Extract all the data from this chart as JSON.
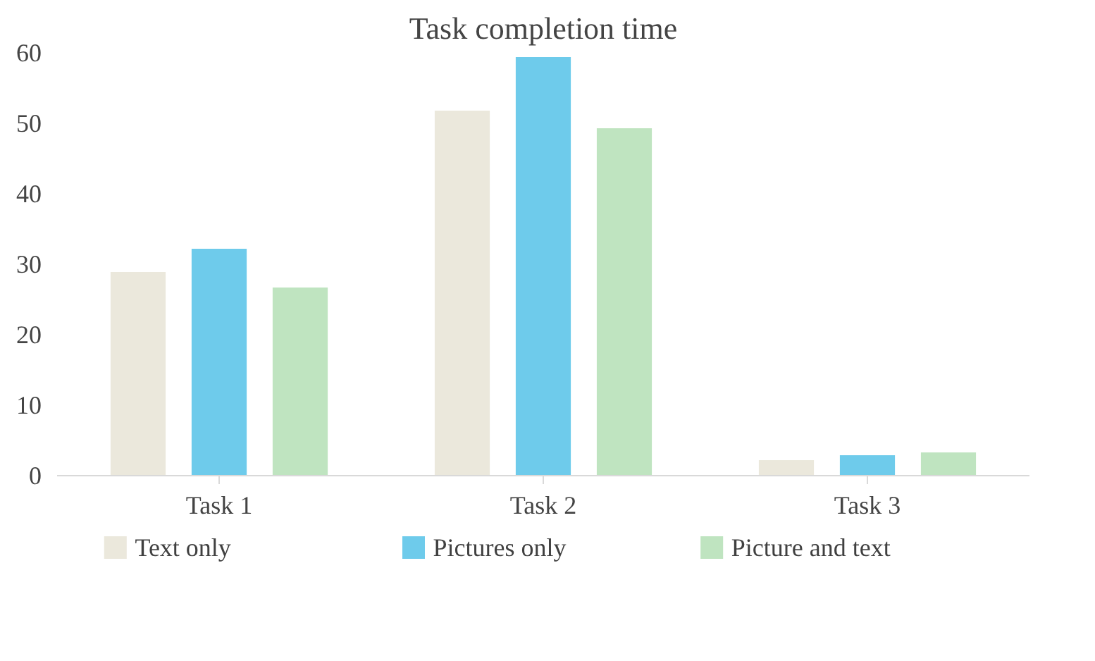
{
  "chart_data": {
    "type": "bar",
    "title": "Task completion time",
    "categories": [
      "Task 1",
      "Task 2",
      "Task 3"
    ],
    "series": [
      {
        "name": "Text only",
        "color": "#ebe8dc",
        "values": [
          28.9,
          51.8,
          2.2
        ]
      },
      {
        "name": "Pictures only",
        "color": "#6ecbeb",
        "values": [
          32.2,
          59.4,
          2.9
        ]
      },
      {
        "name": "Picture and text",
        "color": "#bfe4c0",
        "values": [
          26.7,
          49.3,
          3.3
        ]
      }
    ],
    "ylim": [
      0,
      60
    ],
    "yticks": [
      0,
      10,
      20,
      30,
      40,
      50,
      60
    ],
    "grid": false,
    "legend": "bottom"
  }
}
